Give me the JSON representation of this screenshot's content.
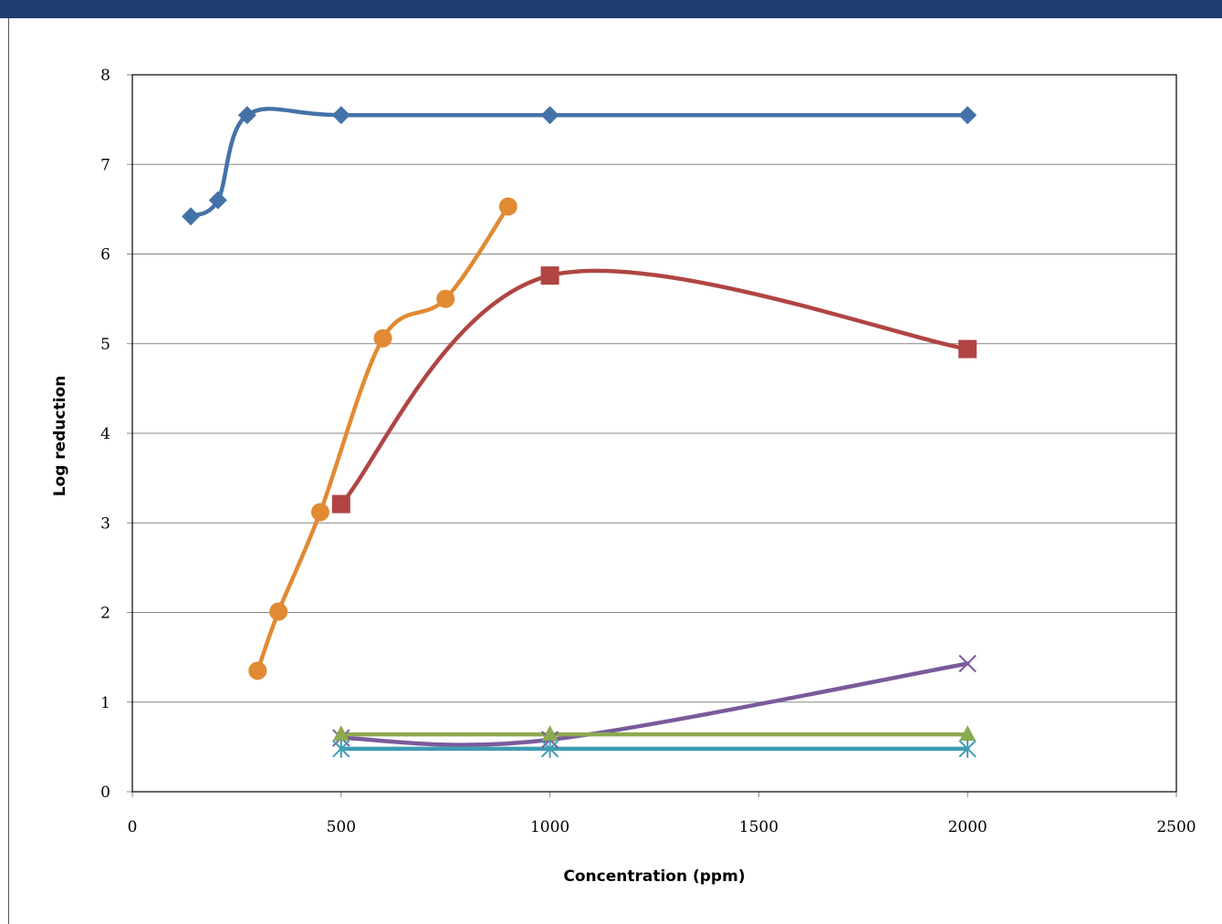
{
  "chart_data": {
    "type": "line",
    "title": "",
    "xlabel": "Concentration (ppm)",
    "ylabel": "Log reduction",
    "xlim": [
      0,
      2500
    ],
    "ylim": [
      0,
      8
    ],
    "x_ticks": [
      "0",
      "500",
      "1000",
      "1500",
      "2000",
      "2500"
    ],
    "y_ticks": [
      "0",
      "1",
      "2",
      "3",
      "4",
      "5",
      "6",
      "7",
      "8"
    ],
    "grid": "horizontal",
    "legend": "none",
    "series": [
      {
        "color": "#4472a8",
        "marker": "diamond",
        "x": [
          140,
          205,
          275,
          500,
          1000,
          2000
        ],
        "y": [
          6.42,
          6.6,
          7.55,
          7.55,
          7.55,
          7.55
        ]
      },
      {
        "color": "#e08a33",
        "marker": "circle",
        "x": [
          300,
          350,
          450,
          600,
          750,
          900
        ],
        "y": [
          1.35,
          2.01,
          3.12,
          5.06,
          5.5,
          6.53
        ]
      },
      {
        "color": "#b04543",
        "marker": "square",
        "x": [
          500,
          1000,
          2000
        ],
        "y": [
          3.21,
          5.76,
          4.94
        ]
      },
      {
        "color": "#7a5a9c",
        "marker": "x",
        "x": [
          500,
          1000,
          2000
        ],
        "y": [
          0.6,
          0.58,
          1.43
        ]
      },
      {
        "color": "#8caa4f",
        "marker": "triangle",
        "x": [
          500,
          1000,
          2000
        ],
        "y": [
          0.64,
          0.64,
          0.64
        ]
      },
      {
        "color": "#3f9cb3",
        "marker": "asterisk",
        "x": [
          500,
          1000,
          2000
        ],
        "y": [
          0.48,
          0.48,
          0.48
        ]
      }
    ]
  }
}
